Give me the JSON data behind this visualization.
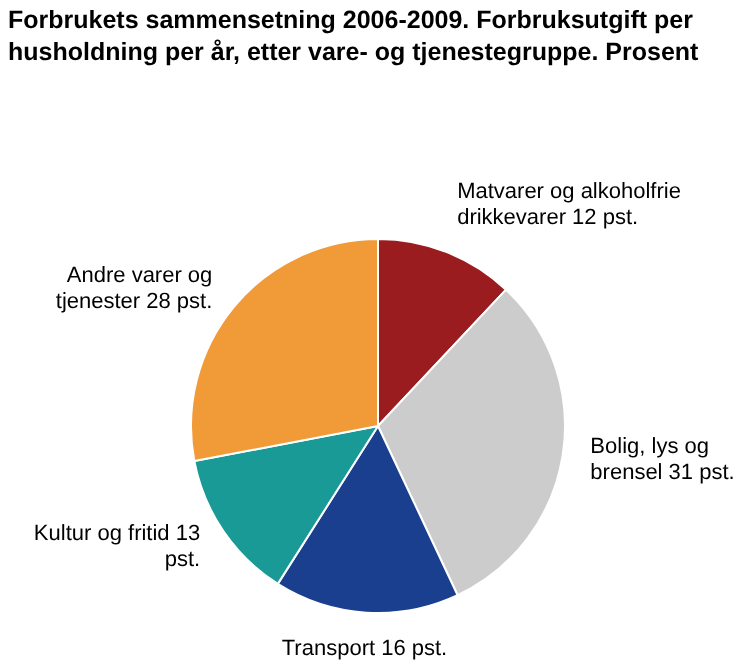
{
  "chart_data": {
    "type": "pie",
    "title": "Forbrukets sammensetning 2006-2009. Forbruksutgift per husholdning per år, etter vare- og tjenestegruppe. Prosent",
    "categories": [
      "Matvarer og alkoholfrie drikkevarer",
      "Bolig, lys og brensel",
      "Transport",
      "Kultur og fritid",
      "Andre varer og tjenester"
    ],
    "values": [
      12,
      31,
      16,
      13,
      28
    ],
    "value_labels": [
      "12 pst.",
      "31 pst.",
      "16 pst.",
      "13 pst.",
      "28 pst."
    ],
    "colors": [
      "#9b1c1f",
      "#cccccc",
      "#1b3f8f",
      "#1a9a96",
      "#f19a38"
    ],
    "legend": false
  }
}
